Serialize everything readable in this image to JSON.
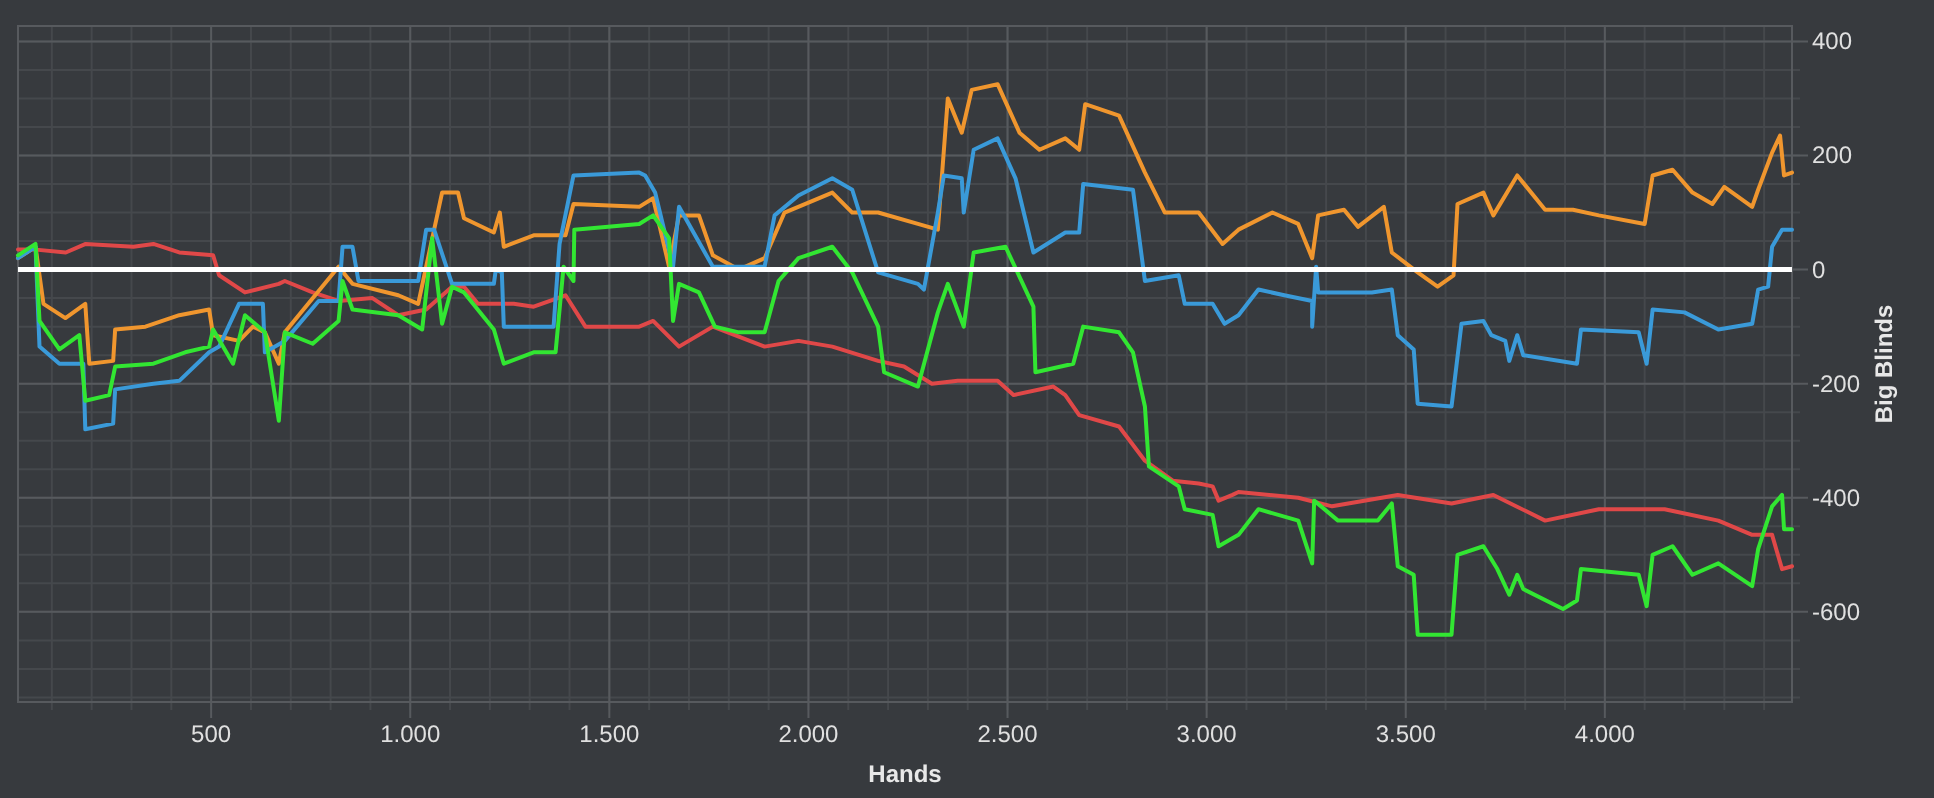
{
  "chart_data": {
    "type": "line",
    "xlabel": "Hands",
    "ylabel": "Big Blinds",
    "xlim": [
      15,
      4470
    ],
    "ylim": [
      -758,
      427
    ],
    "xticks": [
      500,
      {
        "value": 1000,
        "label": "1.000"
      },
      {
        "value": 1500,
        "label": "1.500"
      },
      {
        "value": 2000,
        "label": "2.000"
      },
      {
        "value": 2500,
        "label": "2.500"
      },
      {
        "value": 3000,
        "label": "3.000"
      },
      {
        "value": 3500,
        "label": "3.500"
      },
      {
        "value": 4000,
        "label": "4.000"
      }
    ],
    "yticks": [
      -600,
      -400,
      -200,
      0,
      200,
      400
    ],
    "grid": true,
    "ref_lines": [
      {
        "axis": "y",
        "value": 0,
        "color": "#ffffff"
      }
    ],
    "series": [
      {
        "color": "#e04848",
        "x": [
          15,
          60,
          135,
          185,
          305,
          355,
          420,
          505,
          520,
          585,
          670,
          685,
          755,
          820,
          905,
          970,
          1040,
          1105,
          1135,
          1170,
          1260,
          1310,
          1390,
          1440,
          1575,
          1610,
          1675,
          1760,
          1890,
          1975,
          2060,
          2175,
          2240,
          2310,
          2375,
          2475,
          2515,
          2615,
          2645,
          2680,
          2780,
          2845,
          2915,
          2980,
          3015,
          3030,
          3065,
          3080,
          3230,
          3315,
          3480,
          3615,
          3720,
          3850,
          3985,
          4150,
          4285,
          4370,
          4420,
          4445,
          4470
        ],
        "values": [
          35,
          35,
          30,
          45,
          40,
          45,
          30,
          25,
          -10,
          -40,
          -25,
          -20,
          -40,
          -55,
          -50,
          -80,
          -70,
          -30,
          -30,
          -60,
          -60,
          -65,
          -45,
          -100,
          -100,
          -90,
          -135,
          -100,
          -135,
          -125,
          -135,
          -160,
          -170,
          -200,
          -195,
          -195,
          -220,
          -205,
          -220,
          -255,
          -275,
          -335,
          -370,
          -375,
          -380,
          -405,
          -395,
          -390,
          -400,
          -415,
          -395,
          -410,
          -395,
          -440,
          -420,
          -420,
          -440,
          -465,
          -465,
          -525,
          -520
        ]
      },
      {
        "color": "#f0962e",
        "x": [
          15,
          59,
          79,
          134,
          184,
          194,
          254,
          259,
          335,
          420,
          495,
          505,
          570,
          605,
          635,
          670,
          685,
          820,
          855,
          970,
          1020,
          1040,
          1080,
          1120,
          1135,
          1210,
          1225,
          1235,
          1310,
          1390,
          1410,
          1575,
          1610,
          1650,
          1675,
          1725,
          1760,
          1825,
          1890,
          1940,
          2060,
          2110,
          2175,
          2275,
          2325,
          2350,
          2385,
          2410,
          2475,
          2530,
          2580,
          2645,
          2680,
          2695,
          2780,
          2845,
          2895,
          2980,
          3040,
          3080,
          3165,
          3230,
          3265,
          3280,
          3345,
          3380,
          3445,
          3465,
          3530,
          3580,
          3620,
          3630,
          3695,
          3720,
          3780,
          3850,
          3920,
          3985,
          4100,
          4120,
          4170,
          4220,
          4270,
          4300,
          4370,
          4385,
          4420,
          4440,
          4450,
          4470
        ],
        "values": [
          20,
          40,
          -60,
          -85,
          -60,
          -165,
          -160,
          -105,
          -100,
          -80,
          -70,
          -115,
          -125,
          -100,
          -110,
          -165,
          -110,
          5,
          -25,
          -45,
          -60,
          5,
          135,
          135,
          90,
          65,
          100,
          40,
          60,
          60,
          115,
          110,
          125,
          5,
          95,
          95,
          25,
          0,
          20,
          100,
          135,
          100,
          100,
          80,
          70,
          300,
          240,
          315,
          325,
          240,
          210,
          230,
          210,
          290,
          270,
          170,
          100,
          100,
          45,
          70,
          100,
          80,
          20,
          95,
          105,
          75,
          110,
          30,
          -5,
          -30,
          -10,
          115,
          135,
          95,
          165,
          105,
          105,
          95,
          80,
          165,
          175,
          135,
          115,
          145,
          110,
          140,
          205,
          235,
          165,
          170
        ]
      },
      {
        "color": "#3a9ad9",
        "x": [
          15,
          59,
          69,
          119,
          179,
          184,
          254,
          259,
          355,
          420,
          495,
          520,
          570,
          630,
          635,
          685,
          770,
          820,
          830,
          855,
          870,
          1020,
          1040,
          1060,
          1105,
          1210,
          1215,
          1230,
          1235,
          1360,
          1375,
          1410,
          1575,
          1590,
          1615,
          1660,
          1675,
          1760,
          1890,
          1915,
          1975,
          2060,
          2110,
          2175,
          2275,
          2290,
          2325,
          2340,
          2385,
          2390,
          2415,
          2475,
          2520,
          2565,
          2645,
          2680,
          2690,
          2815,
          2845,
          2930,
          2945,
          3015,
          3045,
          3080,
          3130,
          3195,
          3265,
          3265,
          3275,
          3280,
          3415,
          3465,
          3480,
          3520,
          3530,
          3615,
          3640,
          3695,
          3715,
          3750,
          3760,
          3780,
          3795,
          3930,
          3940,
          4085,
          4105,
          4120,
          4200,
          4285,
          4370,
          4385,
          4410,
          4420,
          4445,
          4470
        ],
        "values": [
          20,
          40,
          -135,
          -165,
          -165,
          -280,
          -270,
          -210,
          -200,
          -195,
          -145,
          -135,
          -60,
          -60,
          -145,
          -125,
          -55,
          -55,
          40,
          40,
          -20,
          -20,
          70,
          70,
          -25,
          -25,
          0,
          -5,
          -100,
          -100,
          45,
          165,
          170,
          165,
          135,
          5,
          110,
          5,
          5,
          95,
          130,
          160,
          140,
          -5,
          -25,
          -35,
          100,
          165,
          160,
          100,
          210,
          230,
          160,
          30,
          65,
          65,
          150,
          140,
          -20,
          -10,
          -60,
          -60,
          -95,
          -80,
          -35,
          -45,
          -55,
          -100,
          5,
          -40,
          -40,
          -35,
          -115,
          -140,
          -235,
          -240,
          -95,
          -90,
          -115,
          -125,
          -160,
          -115,
          -150,
          -165,
          -105,
          -110,
          -165,
          -70,
          -75,
          -105,
          -95,
          -35,
          -30,
          40,
          70,
          70
        ]
      },
      {
        "color": "#32e632",
        "x": [
          15,
          59,
          69,
          119,
          169,
          184,
          244,
          259,
          355,
          435,
          495,
          505,
          555,
          585,
          635,
          670,
          685,
          755,
          820,
          830,
          855,
          970,
          1030,
          1055,
          1080,
          1105,
          1135,
          1210,
          1235,
          1310,
          1365,
          1385,
          1410,
          1412,
          1575,
          1610,
          1650,
          1660,
          1675,
          1725,
          1765,
          1825,
          1890,
          1925,
          1975,
          2060,
          2110,
          2175,
          2190,
          2275,
          2325,
          2350,
          2390,
          2415,
          2495,
          2565,
          2570,
          2665,
          2690,
          2780,
          2815,
          2845,
          2855,
          2930,
          2945,
          3015,
          3030,
          3080,
          3130,
          3230,
          3265,
          3270,
          3330,
          3430,
          3465,
          3480,
          3520,
          3530,
          3615,
          3630,
          3695,
          3730,
          3760,
          3780,
          3795,
          3895,
          3930,
          3940,
          4085,
          4105,
          4120,
          4170,
          4220,
          4285,
          4370,
          4385,
          4420,
          4445,
          4450,
          4470
        ],
        "values": [
          25,
          45,
          -90,
          -140,
          -115,
          -230,
          -220,
          -170,
          -165,
          -145,
          -135,
          -105,
          -165,
          -80,
          -110,
          -265,
          -110,
          -130,
          -90,
          -20,
          -70,
          -80,
          -105,
          55,
          -95,
          -30,
          -40,
          -105,
          -165,
          -145,
          -145,
          5,
          -20,
          70,
          80,
          95,
          55,
          -90,
          -25,
          -40,
          -100,
          -110,
          -110,
          -20,
          20,
          40,
          -5,
          -100,
          -180,
          -205,
          -75,
          -25,
          -100,
          30,
          40,
          -65,
          -180,
          -165,
          -100,
          -110,
          -145,
          -240,
          -345,
          -380,
          -420,
          -430,
          -485,
          -465,
          -420,
          -440,
          -515,
          -405,
          -440,
          -440,
          -410,
          -520,
          -535,
          -640,
          -640,
          -500,
          -485,
          -525,
          -570,
          -535,
          -560,
          -595,
          -580,
          -525,
          -535,
          -590,
          -500,
          -485,
          -535,
          -515,
          -555,
          -490,
          -415,
          -395,
          -455,
          -455
        ]
      }
    ]
  }
}
